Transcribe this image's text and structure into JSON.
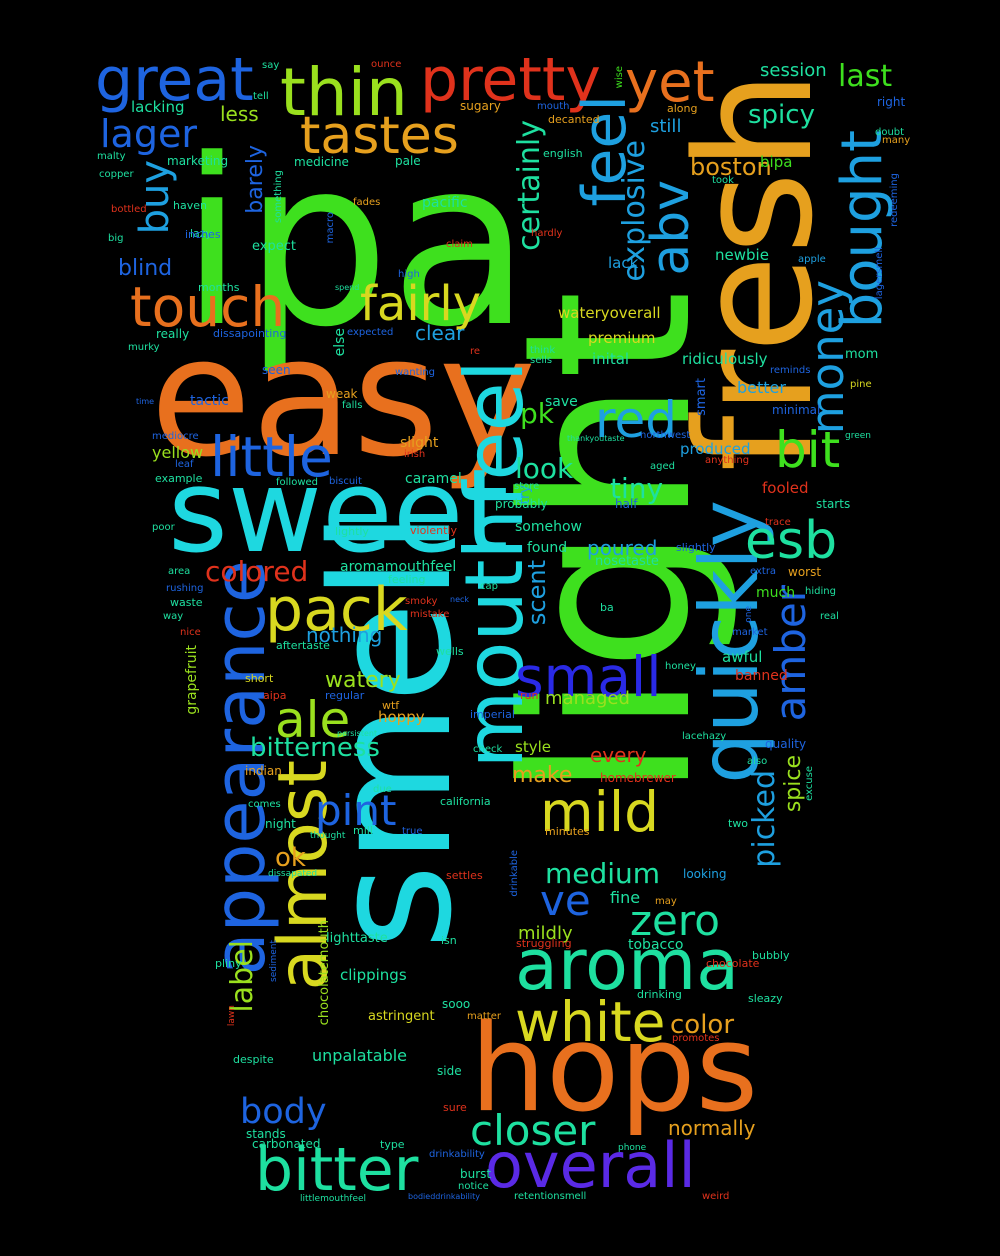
{
  "background": "#000000",
  "palette": {
    "red": "#e0321c",
    "orange": "#e8701e",
    "amber": "#e6a01e",
    "yellow": "#d8d820",
    "lime": "#9ae01e",
    "green": "#3ee01e",
    "teal": "#1ee0a0",
    "cyan": "#1ed8e0",
    "sky": "#1ea0e0",
    "blue": "#1e64e0",
    "indigo": "#2a2ae6",
    "violet": "#5a2ae6"
  },
  "words": [
    {
      "text": "ipa",
      "color": "green"
    },
    {
      "text": "easy",
      "color": "orange"
    },
    {
      "text": "smell",
      "color": "cyan"
    },
    {
      "text": "light",
      "color": "green"
    },
    {
      "text": "fresh",
      "color": "amber"
    },
    {
      "text": "sweet",
      "color": "cyan"
    },
    {
      "text": "hops",
      "color": "orange"
    },
    {
      "text": "mouthfeel",
      "color": "cyan"
    },
    {
      "text": "appearance",
      "color": "blue"
    },
    {
      "text": "quickly",
      "color": "sky"
    },
    {
      "text": "aroma",
      "color": "teal"
    },
    {
      "text": "almost",
      "color": "yellow"
    },
    {
      "text": "overall",
      "color": "violet"
    },
    {
      "text": "bitter",
      "color": "teal"
    },
    {
      "text": "pretty",
      "color": "red"
    },
    {
      "text": "thin",
      "color": "lime"
    },
    {
      "text": "great",
      "color": "blue"
    },
    {
      "text": "yet",
      "color": "orange"
    },
    {
      "text": "tastes",
      "color": "amber"
    },
    {
      "text": "feel",
      "color": "sky"
    },
    {
      "text": "abv",
      "color": "sky"
    },
    {
      "text": "bought",
      "color": "sky"
    },
    {
      "text": "touch",
      "color": "orange"
    },
    {
      "text": "fairly",
      "color": "yellow"
    },
    {
      "text": "little",
      "color": "blue"
    },
    {
      "text": "pack",
      "color": "yellow"
    },
    {
      "text": "small",
      "color": "indigo"
    },
    {
      "text": "white",
      "color": "yellow"
    },
    {
      "text": "esb",
      "color": "teal"
    },
    {
      "text": "red",
      "color": "sky"
    },
    {
      "text": "bit",
      "color": "green"
    },
    {
      "text": "money",
      "color": "sky"
    },
    {
      "text": "mild",
      "color": "yellow"
    },
    {
      "text": "ale",
      "color": "lime"
    },
    {
      "text": "closer",
      "color": "teal"
    },
    {
      "text": "amber",
      "color": "blue"
    },
    {
      "text": "zero",
      "color": "teal"
    },
    {
      "text": "ve",
      "color": "blue"
    },
    {
      "text": "pint",
      "color": "blue"
    },
    {
      "text": "body",
      "color": "blue"
    },
    {
      "text": "lager",
      "color": "blue"
    },
    {
      "text": "buy",
      "color": "sky"
    },
    {
      "text": "certainly",
      "color": "teal"
    },
    {
      "text": "explosive",
      "color": "sky"
    },
    {
      "text": "picked",
      "color": "sky"
    },
    {
      "text": "label",
      "color": "lime"
    },
    {
      "text": "colored",
      "color": "red"
    },
    {
      "text": "medium",
      "color": "teal"
    },
    {
      "text": "boston",
      "color": "amber"
    },
    {
      "text": "pk",
      "color": "green"
    },
    {
      "text": "look",
      "color": "teal"
    },
    {
      "text": "tiny",
      "color": "teal"
    },
    {
      "text": "spicy",
      "color": "teal"
    },
    {
      "text": "last",
      "color": "green"
    },
    {
      "text": "color",
      "color": "amber"
    },
    {
      "text": "bitterness",
      "color": "teal"
    },
    {
      "text": "watery",
      "color": "lime"
    },
    {
      "text": "scent",
      "color": "sky"
    },
    {
      "text": "blind",
      "color": "blue"
    },
    {
      "text": "nothing",
      "color": "sky"
    },
    {
      "text": "barely",
      "color": "blue"
    },
    {
      "text": "less",
      "color": "lime"
    },
    {
      "text": "still",
      "color": "sky"
    },
    {
      "text": "session",
      "color": "teal"
    },
    {
      "text": "make",
      "color": "amber"
    },
    {
      "text": "ok",
      "color": "amber"
    },
    {
      "text": "every",
      "color": "red"
    },
    {
      "text": "spice",
      "color": "lime"
    },
    {
      "text": "normally",
      "color": "amber"
    },
    {
      "text": "mildly",
      "color": "lime"
    },
    {
      "text": "clear",
      "color": "sky"
    },
    {
      "text": "lacking",
      "color": "teal"
    },
    {
      "text": "yellow",
      "color": "lime"
    },
    {
      "text": "poured",
      "color": "sky"
    },
    {
      "text": "fine",
      "color": "teal"
    },
    {
      "text": "better",
      "color": "sky"
    },
    {
      "text": "awful",
      "color": "teal"
    },
    {
      "text": "fooled",
      "color": "red"
    },
    {
      "text": "managed",
      "color": "lime"
    },
    {
      "text": "hoppy",
      "color": "amber"
    },
    {
      "text": "style",
      "color": "lime"
    },
    {
      "text": "newbie",
      "color": "teal"
    },
    {
      "text": "lack",
      "color": "sky"
    },
    {
      "text": "bipa",
      "color": "green"
    },
    {
      "text": "ridiculously",
      "color": "teal"
    },
    {
      "text": "premium",
      "color": "yellow"
    },
    {
      "text": "inital",
      "color": "teal"
    },
    {
      "text": "produced",
      "color": "sky"
    },
    {
      "text": "unpalatable",
      "color": "teal"
    },
    {
      "text": "clippings",
      "color": "teal"
    },
    {
      "text": "tobacco",
      "color": "teal"
    },
    {
      "text": "wateryoverall",
      "color": "yellow"
    },
    {
      "text": "aromamouthfeel",
      "color": "teal"
    },
    {
      "text": "caramel",
      "color": "teal"
    },
    {
      "text": "banned",
      "color": "red"
    },
    {
      "text": "mom",
      "color": "teal"
    },
    {
      "text": "much",
      "color": "green"
    },
    {
      "text": "grapefruit",
      "color": "lime"
    },
    {
      "text": "chocolatemouth",
      "color": "lime"
    },
    {
      "text": "astringent",
      "color": "yellow"
    },
    {
      "text": "lighttaste",
      "color": "teal"
    },
    {
      "text": "smart",
      "color": "blue"
    },
    {
      "text": "tactic",
      "color": "blue"
    },
    {
      "text": "else",
      "color": "teal"
    },
    {
      "text": "try",
      "color": "sky"
    },
    {
      "text": "save",
      "color": "teal"
    },
    {
      "text": "somehow",
      "color": "teal"
    },
    {
      "text": "slight",
      "color": "amber"
    },
    {
      "text": "found",
      "color": "teal"
    },
    {
      "text": "nosetaste",
      "color": "teal"
    },
    {
      "text": "medicine",
      "color": "teal"
    },
    {
      "text": "marketing",
      "color": "teal"
    },
    {
      "text": "pale",
      "color": "teal"
    },
    {
      "text": "sugary",
      "color": "amber"
    },
    {
      "text": "decanted",
      "color": "amber"
    },
    {
      "text": "english",
      "color": "teal"
    },
    {
      "text": "pacific",
      "color": "teal"
    },
    {
      "text": "expect",
      "color": "teal"
    },
    {
      "text": "months",
      "color": "teal"
    },
    {
      "text": "lazy",
      "color": "teal"
    },
    {
      "text": "haven",
      "color": "teal"
    },
    {
      "text": "inches",
      "color": "blue"
    },
    {
      "text": "copper",
      "color": "teal"
    },
    {
      "text": "malty",
      "color": "teal"
    },
    {
      "text": "tell",
      "color": "teal"
    },
    {
      "text": "say",
      "color": "teal"
    },
    {
      "text": "ounce",
      "color": "red"
    },
    {
      "text": "wise",
      "color": "green"
    },
    {
      "text": "mouth",
      "color": "blue"
    },
    {
      "text": "along",
      "color": "amber"
    },
    {
      "text": "right",
      "color": "blue"
    },
    {
      "text": "doubt",
      "color": "teal"
    },
    {
      "text": "many",
      "color": "amber"
    },
    {
      "text": "took",
      "color": "teal"
    },
    {
      "text": "redeeming",
      "color": "blue"
    },
    {
      "text": "apple",
      "color": "sky"
    },
    {
      "text": "lagersmell",
      "color": "blue"
    },
    {
      "text": "bottled",
      "color": "red"
    },
    {
      "text": "big",
      "color": "teal"
    },
    {
      "text": "something",
      "color": "teal"
    },
    {
      "text": "fades",
      "color": "amber"
    },
    {
      "text": "macro",
      "color": "blue"
    },
    {
      "text": "claim",
      "color": "red"
    },
    {
      "text": "hardly",
      "color": "red"
    },
    {
      "text": "high",
      "color": "blue"
    },
    {
      "text": "spend",
      "color": "teal"
    },
    {
      "text": "really",
      "color": "teal"
    },
    {
      "text": "dissapointing",
      "color": "blue"
    },
    {
      "text": "expected",
      "color": "blue"
    },
    {
      "text": "murky",
      "color": "teal"
    },
    {
      "text": "re",
      "color": "red"
    },
    {
      "text": "think",
      "color": "teal"
    },
    {
      "text": "sells",
      "color": "teal"
    },
    {
      "text": "reminds",
      "color": "blue"
    },
    {
      "text": "minimal",
      "color": "blue"
    },
    {
      "text": "pine",
      "color": "yellow"
    },
    {
      "text": "seen",
      "color": "blue"
    },
    {
      "text": "wanting",
      "color": "blue"
    },
    {
      "text": "weak",
      "color": "amber"
    },
    {
      "text": "falls",
      "color": "teal"
    },
    {
      "text": "time",
      "color": "blue"
    },
    {
      "text": "mediocre",
      "color": "blue"
    },
    {
      "text": "leaf",
      "color": "blue"
    },
    {
      "text": "example",
      "color": "teal"
    },
    {
      "text": "irish",
      "color": "red"
    },
    {
      "text": "followed",
      "color": "teal"
    },
    {
      "text": "biscuit",
      "color": "blue"
    },
    {
      "text": "thankyoutaste",
      "color": "teal"
    },
    {
      "text": "northwest",
      "color": "blue"
    },
    {
      "text": "green",
      "color": "teal"
    },
    {
      "text": "aged",
      "color": "teal"
    },
    {
      "text": "anything",
      "color": "red"
    },
    {
      "text": "store",
      "color": "teal"
    },
    {
      "text": "probably",
      "color": "teal"
    },
    {
      "text": "half",
      "color": "blue"
    },
    {
      "text": "starts",
      "color": "teal"
    },
    {
      "text": "trace",
      "color": "red"
    },
    {
      "text": "poor",
      "color": "teal"
    },
    {
      "text": "lightly",
      "color": "teal"
    },
    {
      "text": "violently",
      "color": "red"
    },
    {
      "text": "slightly",
      "color": "blue"
    },
    {
      "text": "extra",
      "color": "blue"
    },
    {
      "text": "worst",
      "color": "amber"
    },
    {
      "text": "area",
      "color": "teal"
    },
    {
      "text": "feeling",
      "color": "teal"
    },
    {
      "text": "cap",
      "color": "teal"
    },
    {
      "text": "hiding",
      "color": "teal"
    },
    {
      "text": "rushing",
      "color": "blue"
    },
    {
      "text": "smoky",
      "color": "red"
    },
    {
      "text": "neck",
      "color": "blue"
    },
    {
      "text": "waste",
      "color": "teal"
    },
    {
      "text": "way",
      "color": "teal"
    },
    {
      "text": "mistake",
      "color": "red"
    },
    {
      "text": "ba",
      "color": "teal"
    },
    {
      "text": "one",
      "color": "blue"
    },
    {
      "text": "real",
      "color": "teal"
    },
    {
      "text": "nice",
      "color": "red"
    },
    {
      "text": "market",
      "color": "blue"
    },
    {
      "text": "aftertaste",
      "color": "teal"
    },
    {
      "text": "wells",
      "color": "teal"
    },
    {
      "text": "honey",
      "color": "teal"
    },
    {
      "text": "short",
      "color": "yellow"
    },
    {
      "text": "aipa",
      "color": "red"
    },
    {
      "text": "regular",
      "color": "blue"
    },
    {
      "text": "wtf",
      "color": "amber"
    },
    {
      "text": "run",
      "color": "red"
    },
    {
      "text": "imperial",
      "color": "blue"
    },
    {
      "text": "persistent",
      "color": "teal"
    },
    {
      "text": "lacehazy",
      "color": "teal"
    },
    {
      "text": "quality",
      "color": "blue"
    },
    {
      "text": "check",
      "color": "teal"
    },
    {
      "text": "indian",
      "color": "amber"
    },
    {
      "text": "also",
      "color": "teal"
    },
    {
      "text": "homebrewer",
      "color": "red"
    },
    {
      "text": "excuse",
      "color": "teal"
    },
    {
      "text": "due",
      "color": "teal"
    },
    {
      "text": "comes",
      "color": "teal"
    },
    {
      "text": "california",
      "color": "teal"
    },
    {
      "text": "night",
      "color": "teal"
    },
    {
      "text": "mill",
      "color": "teal"
    },
    {
      "text": "true",
      "color": "blue"
    },
    {
      "text": "thought",
      "color": "teal"
    },
    {
      "text": "minutes",
      "color": "amber"
    },
    {
      "text": "two",
      "color": "teal"
    },
    {
      "text": "dissapated",
      "color": "teal"
    },
    {
      "text": "settles",
      "color": "red"
    },
    {
      "text": "drinkable",
      "color": "blue"
    },
    {
      "text": "looking",
      "color": "sky"
    },
    {
      "text": "may",
      "color": "amber"
    },
    {
      "text": "isn",
      "color": "teal"
    },
    {
      "text": "struggling",
      "color": "red"
    },
    {
      "text": "pliny",
      "color": "teal"
    },
    {
      "text": "sediment",
      "color": "blue"
    },
    {
      "text": "bubbly",
      "color": "teal"
    },
    {
      "text": "chocolate",
      "color": "red"
    },
    {
      "text": "sooo",
      "color": "teal"
    },
    {
      "text": "drinking",
      "color": "teal"
    },
    {
      "text": "lawn",
      "color": "red"
    },
    {
      "text": "matter",
      "color": "amber"
    },
    {
      "text": "sleazy",
      "color": "teal"
    },
    {
      "text": "promotes",
      "color": "red"
    },
    {
      "text": "side",
      "color": "teal"
    },
    {
      "text": "despite",
      "color": "teal"
    },
    {
      "text": "sure",
      "color": "red"
    },
    {
      "text": "stands",
      "color": "teal"
    },
    {
      "text": "carbonated",
      "color": "teal"
    },
    {
      "text": "type",
      "color": "teal"
    },
    {
      "text": "phone",
      "color": "teal"
    },
    {
      "text": "drinkability",
      "color": "blue"
    },
    {
      "text": "burst",
      "color": "teal"
    },
    {
      "text": "notice",
      "color": "teal"
    },
    {
      "text": "littlemouthfeel",
      "color": "teal"
    },
    {
      "text": "bodieddrinkability",
      "color": "blue"
    },
    {
      "text": "retentionsmell",
      "color": "teal"
    },
    {
      "text": "weird",
      "color": "red"
    }
  ]
}
